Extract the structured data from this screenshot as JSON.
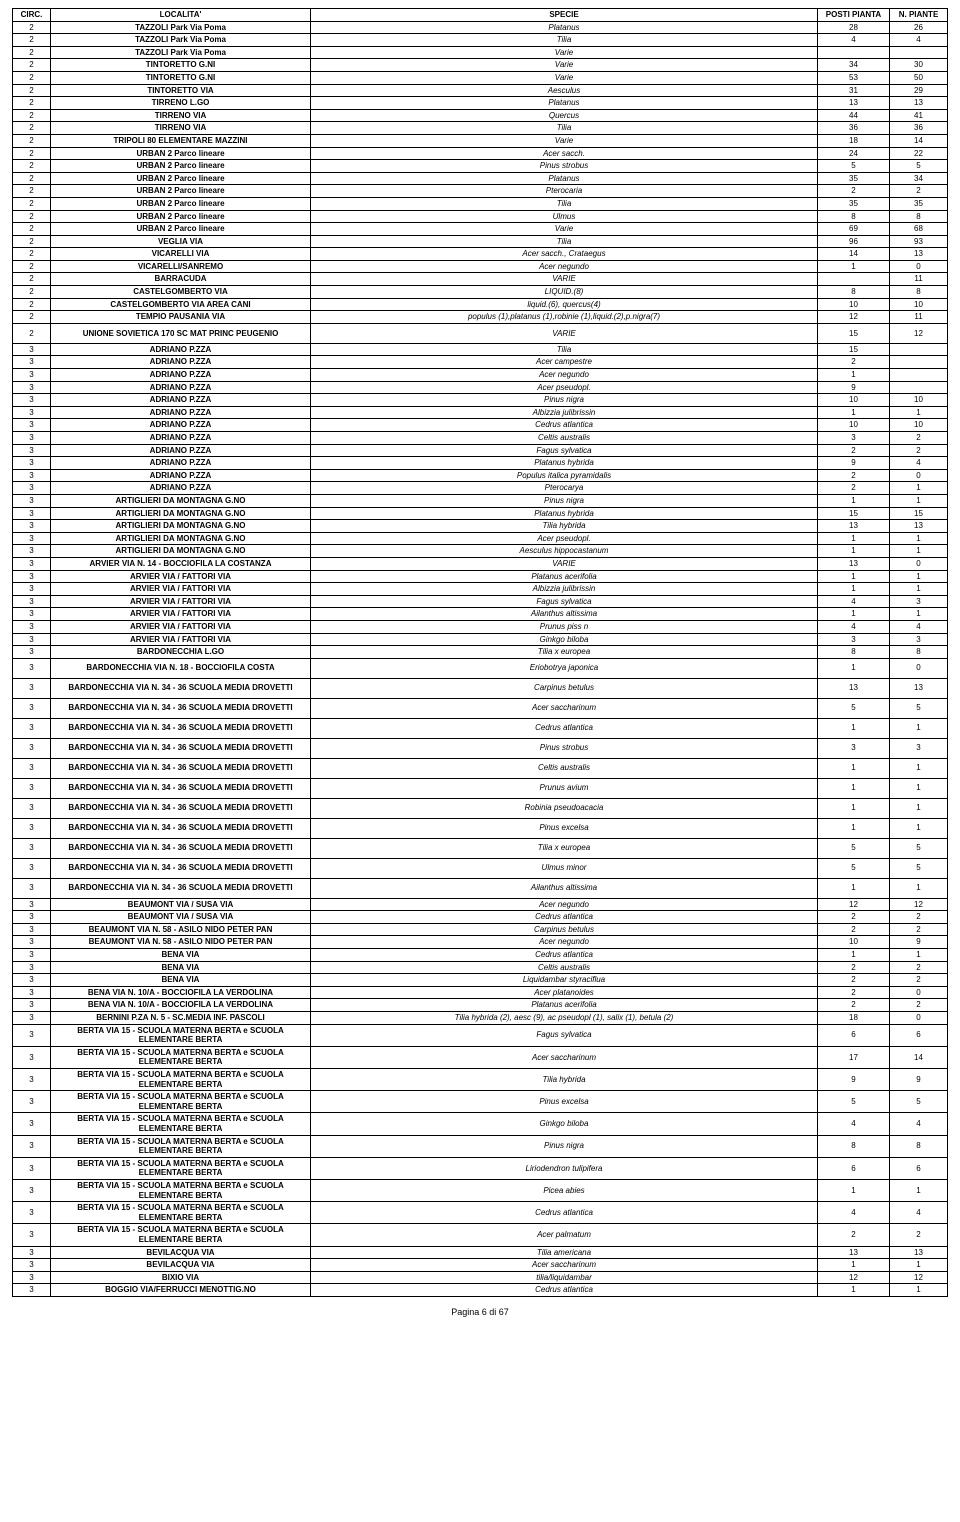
{
  "headers": [
    "CIRC.",
    "LOCALITA'",
    "SPECIE",
    "POSTI PIANTA",
    "N. PIANTE"
  ],
  "footer": "Pagina 6 di 67",
  "rows": [
    {
      "c": "2",
      "loc": "TAZZOLI Park Via Poma",
      "sp": "Platanus",
      "p": "28",
      "n": "26"
    },
    {
      "c": "2",
      "loc": "TAZZOLI Park Via Poma",
      "sp": "Tilia",
      "p": "4",
      "n": "4"
    },
    {
      "c": "2",
      "loc": "TAZZOLI Park Via Poma",
      "sp": "Varie",
      "p": "",
      "n": ""
    },
    {
      "c": "2",
      "loc": "TINTORETTO G.NI",
      "sp": "Varie",
      "p": "34",
      "n": "30"
    },
    {
      "c": "2",
      "loc": "TINTORETTO G.NI",
      "sp": "Varie",
      "p": "53",
      "n": "50"
    },
    {
      "c": "2",
      "loc": "TINTORETTO VIA",
      "sp": "Aesculus",
      "p": "31",
      "n": "29"
    },
    {
      "c": "2",
      "loc": "TIRRENO L.GO",
      "sp": "Platanus",
      "p": "13",
      "n": "13"
    },
    {
      "c": "2",
      "loc": "TIRRENO VIA",
      "sp": "Quercus",
      "p": "44",
      "n": "41"
    },
    {
      "c": "2",
      "loc": "TIRRENO VIA",
      "sp": "Tilia",
      "p": "36",
      "n": "36"
    },
    {
      "c": "2",
      "loc": "TRIPOLI 80 ELEMENTARE MAZZINI",
      "sp": "Varie",
      "p": "18",
      "n": "14"
    },
    {
      "c": "2",
      "loc": "URBAN 2 Parco lineare",
      "sp": "Acer sacch.",
      "p": "24",
      "n": "22"
    },
    {
      "c": "2",
      "loc": "URBAN 2 Parco lineare",
      "sp": "Pinus strobus",
      "p": "5",
      "n": "5"
    },
    {
      "c": "2",
      "loc": "URBAN 2 Parco lineare",
      "sp": "Platanus",
      "p": "35",
      "n": "34"
    },
    {
      "c": "2",
      "loc": "URBAN 2 Parco lineare",
      "sp": "Pterocaria",
      "p": "2",
      "n": "2"
    },
    {
      "c": "2",
      "loc": "URBAN 2 Parco lineare",
      "sp": "Tilia",
      "p": "35",
      "n": "35"
    },
    {
      "c": "2",
      "loc": "URBAN 2 Parco lineare",
      "sp": "Ulmus",
      "p": "8",
      "n": "8"
    },
    {
      "c": "2",
      "loc": "URBAN 2 Parco lineare",
      "sp": "Varie",
      "p": "69",
      "n": "68"
    },
    {
      "c": "2",
      "loc": "VEGLIA VIA",
      "sp": "Tilia",
      "p": "96",
      "n": "93"
    },
    {
      "c": "2",
      "loc": "VICARELLI VIA",
      "sp": "Acer sacch., Crataegus",
      "p": "14",
      "n": "13"
    },
    {
      "c": "2",
      "loc": "VICARELLI/SANREMO",
      "sp": "Acer negundo",
      "p": "1",
      "n": "0"
    },
    {
      "c": "2",
      "loc": "BARRACUDA",
      "sp": "VARIE",
      "p": "",
      "n": "11"
    },
    {
      "c": "2",
      "loc": "CASTELGOMBERTO VIA",
      "sp": "LIQUID.(8)",
      "p": "8",
      "n": "8"
    },
    {
      "c": "2",
      "loc": "CASTELGOMBERTO VIA AREA CANI",
      "sp": "liquid.(6), quercus(4)",
      "p": "10",
      "n": "10"
    },
    {
      "c": "2",
      "loc": "TEMPIO PAUSANIA VIA",
      "sp": "populus (1),platanus (1),robinie (1),liquid.(2),p.nigra(7)",
      "p": "12",
      "n": "11"
    },
    {
      "c": "2",
      "loc": "UNIONE SOVIETICA 170 SC MAT PRINC PEUGENIO",
      "sp": "VARIE",
      "p": "15",
      "n": "12",
      "tall": true
    },
    {
      "c": "3",
      "loc": "ADRIANO P.ZZA",
      "sp": "Tilia",
      "p": "15",
      "n": ""
    },
    {
      "c": "3",
      "loc": "ADRIANO P.ZZA",
      "sp": "Acer campestre",
      "p": "2",
      "n": ""
    },
    {
      "c": "3",
      "loc": "ADRIANO P.ZZA",
      "sp": "Acer negundo",
      "p": "1",
      "n": ""
    },
    {
      "c": "3",
      "loc": "ADRIANO P.ZZA",
      "sp": "Acer pseudopl.",
      "p": "9",
      "n": ""
    },
    {
      "c": "3",
      "loc": "ADRIANO P.ZZA",
      "sp": "Pinus nigra",
      "p": "10",
      "n": "10"
    },
    {
      "c": "3",
      "loc": "ADRIANO P.ZZA",
      "sp": "Albizzia julibrissin",
      "p": "1",
      "n": "1"
    },
    {
      "c": "3",
      "loc": "ADRIANO P.ZZA",
      "sp": "Cedrus atlantica",
      "p": "10",
      "n": "10"
    },
    {
      "c": "3",
      "loc": "ADRIANO P.ZZA",
      "sp": "Celtis australis",
      "p": "3",
      "n": "2"
    },
    {
      "c": "3",
      "loc": "ADRIANO P.ZZA",
      "sp": "Fagus sylvatica",
      "p": "2",
      "n": "2"
    },
    {
      "c": "3",
      "loc": "ADRIANO P.ZZA",
      "sp": "Platanus hybrida",
      "p": "9",
      "n": "4"
    },
    {
      "c": "3",
      "loc": "ADRIANO P.ZZA",
      "sp": "Populus italica pyramidalis",
      "p": "2",
      "n": "0"
    },
    {
      "c": "3",
      "loc": "ADRIANO P.ZZA",
      "sp": "Pterocarya",
      "p": "2",
      "n": "1"
    },
    {
      "c": "3",
      "loc": "ARTIGLIERI DA MONTAGNA G.NO",
      "sp": "Pinus nigra",
      "p": "1",
      "n": "1"
    },
    {
      "c": "3",
      "loc": "ARTIGLIERI DA MONTAGNA G.NO",
      "sp": "Platanus hybrida",
      "p": "15",
      "n": "15"
    },
    {
      "c": "3",
      "loc": "ARTIGLIERI DA MONTAGNA G.NO",
      "sp": "Tilia hybrida",
      "p": "13",
      "n": "13"
    },
    {
      "c": "3",
      "loc": "ARTIGLIERI DA MONTAGNA G.NO",
      "sp": "Acer pseudopl.",
      "p": "1",
      "n": "1"
    },
    {
      "c": "3",
      "loc": "ARTIGLIERI DA MONTAGNA G.NO",
      "sp": "Aesculus hippocastanum",
      "p": "1",
      "n": "1"
    },
    {
      "c": "3",
      "loc": "ARVIER VIA  N. 14 - BOCCIOFILA LA COSTANZA",
      "sp": "VARIE",
      "p": "13",
      "n": "0"
    },
    {
      "c": "3",
      "loc": "ARVIER VIA / FATTORI VIA",
      "sp": "Platanus acerifolia",
      "p": "1",
      "n": "1"
    },
    {
      "c": "3",
      "loc": "ARVIER VIA / FATTORI VIA",
      "sp": "Albizzia julibrissin",
      "p": "1",
      "n": "1"
    },
    {
      "c": "3",
      "loc": "ARVIER VIA / FATTORI VIA",
      "sp": "Fagus sylvatica",
      "p": "4",
      "n": "3"
    },
    {
      "c": "3",
      "loc": "ARVIER VIA / FATTORI VIA",
      "sp": "Ailanthus altissima",
      "p": "1",
      "n": "1"
    },
    {
      "c": "3",
      "loc": "ARVIER VIA / FATTORI VIA",
      "sp": "Prunus piss n",
      "p": "4",
      "n": "4"
    },
    {
      "c": "3",
      "loc": "ARVIER VIA / FATTORI VIA",
      "sp": "Ginkgo biloba",
      "p": "3",
      "n": "3"
    },
    {
      "c": "3",
      "loc": "BARDONECCHIA L.GO",
      "sp": "Tilia x europea",
      "p": "8",
      "n": "8"
    },
    {
      "c": "3",
      "loc": "BARDONECCHIA VIA N. 18 - BOCCIOFILA COSTA",
      "sp": "Eriobotrya japonica",
      "p": "1",
      "n": "0",
      "tall": true
    },
    {
      "c": "3",
      "loc": "BARDONECCHIA VIA N. 34 - 36 SCUOLA MEDIA DROVETTI",
      "sp": "Carpinus betulus",
      "p": "13",
      "n": "13",
      "tall": true
    },
    {
      "c": "3",
      "loc": "BARDONECCHIA VIA N. 34 - 36 SCUOLA MEDIA DROVETTI",
      "sp": "Acer saccharinum",
      "p": "5",
      "n": "5",
      "tall": true
    },
    {
      "c": "3",
      "loc": "BARDONECCHIA VIA N. 34 - 36 SCUOLA MEDIA DROVETTI",
      "sp": "Cedrus atlantica",
      "p": "1",
      "n": "1",
      "tall": true
    },
    {
      "c": "3",
      "loc": "BARDONECCHIA VIA N. 34 - 36 SCUOLA MEDIA DROVETTI",
      "sp": "Pinus strobus",
      "p": "3",
      "n": "3",
      "tall": true
    },
    {
      "c": "3",
      "loc": "BARDONECCHIA VIA N. 34 - 36 SCUOLA MEDIA DROVETTI",
      "sp": "Celtis australis",
      "p": "1",
      "n": "1",
      "tall": true
    },
    {
      "c": "3",
      "loc": "BARDONECCHIA VIA N. 34 - 36 SCUOLA MEDIA DROVETTI",
      "sp": "Prunus avium",
      "p": "1",
      "n": "1",
      "tall": true
    },
    {
      "c": "3",
      "loc": "BARDONECCHIA VIA N. 34 - 36 SCUOLA MEDIA DROVETTI",
      "sp": "Robinia pseudoacacia",
      "p": "1",
      "n": "1",
      "tall": true
    },
    {
      "c": "3",
      "loc": "BARDONECCHIA VIA N. 34 - 36 SCUOLA MEDIA DROVETTI",
      "sp": "Pinus excelsa",
      "p": "1",
      "n": "1",
      "tall": true
    },
    {
      "c": "3",
      "loc": "BARDONECCHIA VIA N. 34 - 36 SCUOLA MEDIA DROVETTI",
      "sp": "Tilia x europea",
      "p": "5",
      "n": "5",
      "tall": true
    },
    {
      "c": "3",
      "loc": "BARDONECCHIA VIA N. 34 - 36 SCUOLA MEDIA DROVETTI",
      "sp": "Ulmus minor",
      "p": "5",
      "n": "5",
      "tall": true
    },
    {
      "c": "3",
      "loc": "BARDONECCHIA VIA N. 34 - 36 SCUOLA MEDIA DROVETTI",
      "sp": "Ailanthus altissima",
      "p": "1",
      "n": "1",
      "tall": true
    },
    {
      "c": "3",
      "loc": "BEAUMONT VIA / SUSA VIA",
      "sp": "Acer negundo",
      "p": "12",
      "n": "12"
    },
    {
      "c": "3",
      "loc": "BEAUMONT VIA / SUSA VIA",
      "sp": "Cedrus atlantica",
      "p": "2",
      "n": "2"
    },
    {
      "c": "3",
      "loc": "BEAUMONT VIA N. 58 - ASILO NIDO PETER PAN",
      "sp": "Carpinus betulus",
      "p": "2",
      "n": "2"
    },
    {
      "c": "3",
      "loc": "BEAUMONT VIA N. 58 - ASILO NIDO PETER PAN",
      "sp": "Acer negundo",
      "p": "10",
      "n": "9"
    },
    {
      "c": "3",
      "loc": "BENA VIA",
      "sp": "Cedrus atlantica",
      "p": "1",
      "n": "1"
    },
    {
      "c": "3",
      "loc": "BENA VIA",
      "sp": "Celtis australis",
      "p": "2",
      "n": "2"
    },
    {
      "c": "3",
      "loc": "BENA VIA",
      "sp": "Liquidambar styraciflua",
      "p": "2",
      "n": "2"
    },
    {
      "c": "3",
      "loc": "BENA VIA N. 10/A - BOCCIOFILA LA VERDOLINA",
      "sp": "Acer platanoides",
      "p": "2",
      "n": "0"
    },
    {
      "c": "3",
      "loc": "BENA VIA N. 10/A - BOCCIOFILA LA VERDOLINA",
      "sp": "Platanus acerifolia",
      "p": "2",
      "n": "2"
    },
    {
      "c": "3",
      "loc": "BERNINI P.ZA N. 5 - SC.MEDIA INF. PASCOLI",
      "sp": "Tilia hybrida (2), aesc (9), ac pseudopl (1), salix (1), betula (2)",
      "p": "18",
      "n": "0"
    },
    {
      "c": "3",
      "loc": "BERTA VIA 15 - SCUOLA MATERNA BERTA e SCUOLA ELEMENTARE BERTA",
      "sp": "Fagus sylvatica",
      "p": "6",
      "n": "6",
      "tall": true
    },
    {
      "c": "3",
      "loc": "BERTA VIA 15 - SCUOLA MATERNA BERTA e SCUOLA ELEMENTARE BERTA",
      "sp": "Acer saccharinum",
      "p": "17",
      "n": "14",
      "tall": true
    },
    {
      "c": "3",
      "loc": "BERTA VIA 15 - SCUOLA MATERNA BERTA e SCUOLA ELEMENTARE BERTA",
      "sp": "Tilia hybrida",
      "p": "9",
      "n": "9",
      "tall": true
    },
    {
      "c": "3",
      "loc": "BERTA VIA 15 - SCUOLA MATERNA BERTA e SCUOLA ELEMENTARE BERTA",
      "sp": "Pinus excelsa",
      "p": "5",
      "n": "5",
      "tall": true
    },
    {
      "c": "3",
      "loc": "BERTA VIA 15 - SCUOLA MATERNA BERTA e SCUOLA ELEMENTARE BERTA",
      "sp": "Ginkgo biloba",
      "p": "4",
      "n": "4",
      "tall": true
    },
    {
      "c": "3",
      "loc": "BERTA VIA 15 - SCUOLA MATERNA BERTA e SCUOLA ELEMENTARE BERTA",
      "sp": "Pinus nigra",
      "p": "8",
      "n": "8",
      "tall": true
    },
    {
      "c": "3",
      "loc": "BERTA VIA 15 - SCUOLA MATERNA BERTA e SCUOLA ELEMENTARE BERTA",
      "sp": "Liriodendron tulipifera",
      "p": "6",
      "n": "6",
      "tall": true
    },
    {
      "c": "3",
      "loc": "BERTA VIA 15 - SCUOLA MATERNA BERTA e SCUOLA ELEMENTARE BERTA",
      "sp": "Picea abies",
      "p": "1",
      "n": "1",
      "tall": true
    },
    {
      "c": "3",
      "loc": "BERTA VIA 15 - SCUOLA MATERNA BERTA e SCUOLA ELEMENTARE BERTA",
      "sp": "Cedrus atlantica",
      "p": "4",
      "n": "4",
      "tall": true
    },
    {
      "c": "3",
      "loc": "BERTA VIA 15 - SCUOLA MATERNA BERTA e SCUOLA ELEMENTARE BERTA",
      "sp": "Acer palmatum",
      "p": "2",
      "n": "2",
      "tall": true
    },
    {
      "c": "3",
      "loc": "BEVILACQUA VIA",
      "sp": "Tilia americana",
      "p": "13",
      "n": "13"
    },
    {
      "c": "3",
      "loc": "BEVILACQUA VIA",
      "sp": "Acer saccharinum",
      "p": "1",
      "n": "1"
    },
    {
      "c": "3",
      "loc": "BIXIO VIA",
      "sp": "tilia/liquidambar",
      "p": "12",
      "n": "12"
    },
    {
      "c": "3",
      "loc": "BOGGIO VIA/FERRUCCI  MENOTTIG.NO",
      "sp": "Cedrus atlantica",
      "p": "1",
      "n": "1"
    }
  ]
}
